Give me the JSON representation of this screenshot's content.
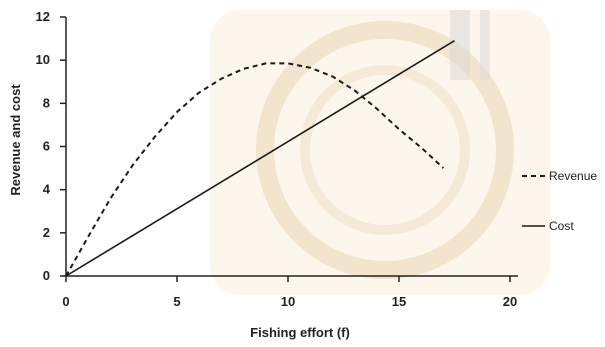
{
  "chart_data": {
    "type": "line",
    "xlabel": "Fishing effort (f)",
    "ylabel": "Revenue and cost",
    "xlim": [
      0,
      20
    ],
    "ylim": [
      0,
      12
    ],
    "xticks": [
      0,
      5,
      10,
      15,
      20
    ],
    "yticks": [
      0,
      2,
      4,
      6,
      8,
      10,
      12
    ],
    "grid": false,
    "legend_position": "right",
    "series": [
      {
        "name": "Revenue",
        "style": "dashed",
        "color": "#1a1a1a",
        "x": [
          0,
          1,
          2,
          3,
          4,
          5,
          6,
          7,
          8,
          9,
          10,
          11,
          12,
          13,
          14,
          15,
          16,
          17
        ],
        "y": [
          0,
          1.82,
          3.59,
          5.13,
          6.45,
          7.6,
          8.5,
          9.14,
          9.6,
          9.85,
          9.85,
          9.65,
          9.25,
          8.6,
          7.75,
          6.8,
          5.95,
          5.0
        ]
      },
      {
        "name": "Cost",
        "style": "solid",
        "color": "#1a1a1a",
        "x": [
          0,
          17.5
        ],
        "y": [
          0,
          10.9
        ]
      }
    ]
  }
}
